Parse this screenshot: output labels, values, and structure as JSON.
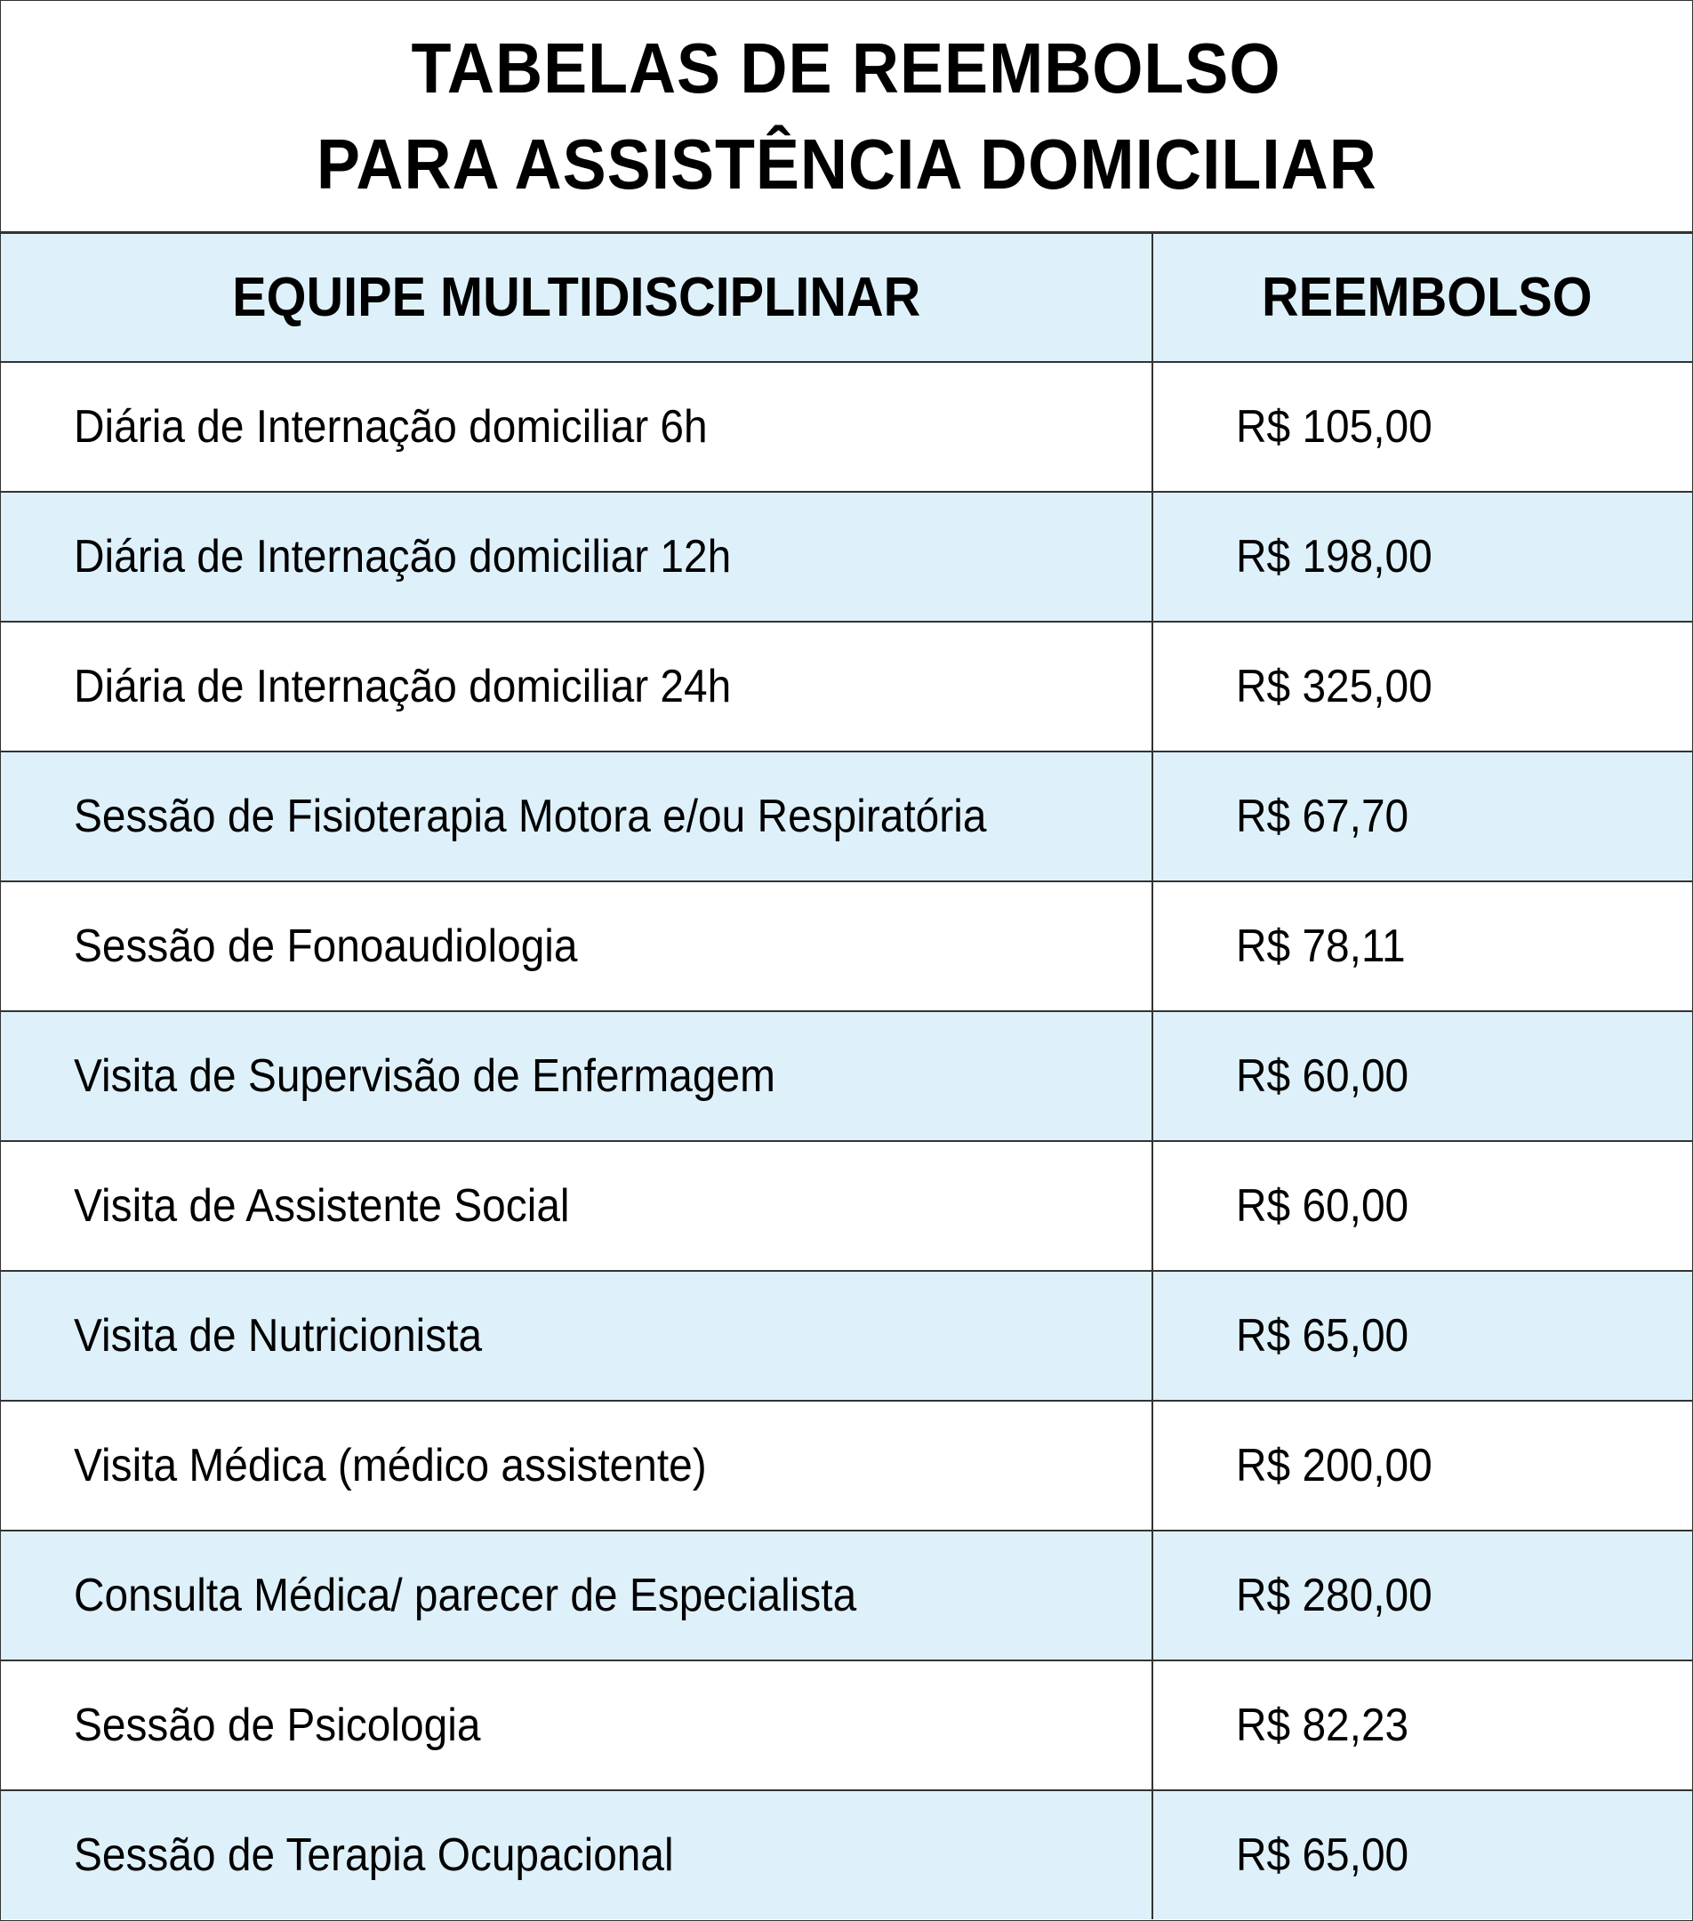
{
  "title": {
    "line1": "TABELAS DE REEMBOLSO",
    "line2": "PARA ASSISTÊNCIA DOMICILIAR"
  },
  "table": {
    "headers": [
      "EQUIPE MULTIDISCIPLINAR",
      "REEMBOLSO"
    ],
    "rows": [
      {
        "service": "Diária de Internação domiciliar 6h",
        "value": "R$ 105,00"
      },
      {
        "service": "Diária de Internação domiciliar 12h",
        "value": "R$ 198,00"
      },
      {
        "service": "Diária de Internação domiciliar 24h",
        "value": "R$ 325,00"
      },
      {
        "service": "Sessão de Fisioterapia Motora e/ou Respiratória",
        "value": "R$ 67,70"
      },
      {
        "service": "Sessão de Fonoaudiologia",
        "value": "R$ 78,11"
      },
      {
        "service": "Visita de Supervisão de Enfermagem",
        "value": "R$ 60,00"
      },
      {
        "service": "Visita de Assistente Social",
        "value": "R$ 60,00"
      },
      {
        "service": "Visita de Nutricionista",
        "value": "R$ 65,00"
      },
      {
        "service": "Visita Médica (médico assistente)",
        "value": "R$ 200,00"
      },
      {
        "service": "Consulta Médica/ parecer de Especialista",
        "value": "R$ 280,00"
      },
      {
        "service": "Sessão de Psicologia",
        "value": "R$ 82,23"
      },
      {
        "service": "Sessão de Terapia Ocupacional",
        "value": "R$ 65,00"
      }
    ]
  },
  "colors": {
    "stripe": "#def1fb",
    "border": "#333333",
    "text": "#000000"
  }
}
